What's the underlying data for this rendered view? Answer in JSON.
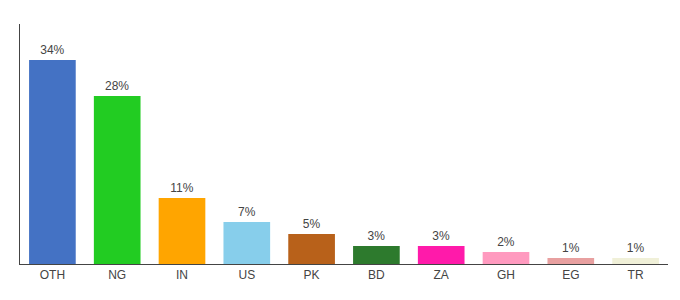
{
  "chart_data": {
    "type": "bar",
    "categories": [
      "OTH",
      "NG",
      "IN",
      "US",
      "PK",
      "BD",
      "ZA",
      "GH",
      "EG",
      "TR"
    ],
    "values": [
      34,
      28,
      11,
      7,
      5,
      3,
      3,
      2,
      1,
      1
    ],
    "value_labels": [
      "34%",
      "28%",
      "11%",
      "7%",
      "5%",
      "3%",
      "3%",
      "2%",
      "1%",
      "1%"
    ],
    "colors": [
      "#4472c4",
      "#22cc22",
      "#ffa500",
      "#87ceeb",
      "#b8611a",
      "#2d7a2d",
      "#ff1aaa",
      "#ff9abf",
      "#e8a0a0",
      "#f0f0d8"
    ],
    "ylim": [
      0,
      40
    ],
    "data_labels": true,
    "tick_labels": "x",
    "grid": false
  }
}
